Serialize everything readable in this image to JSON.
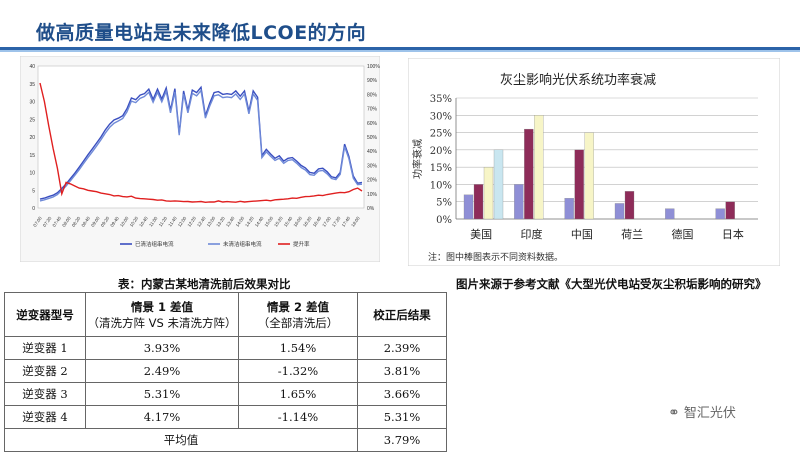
{
  "page": {
    "title": "做高质量电站是未来降低LCOE的方向",
    "table_caption": "表：内蒙古某地清洗前后效果对比",
    "source_caption": "图片来源于参考文献《大型光伏电站受灰尘积垢影响的研究》",
    "watermark": "智汇光伏"
  },
  "table": {
    "headers": {
      "col1": "逆变器型号",
      "col2_line1": "情景 1 差值",
      "col2_line2": "（清洗方阵 VS 未清洗方阵）",
      "col3_line1": "情景 2 差值",
      "col3_line2": "（全部清洗后）",
      "col4": "校正后结果"
    },
    "rows": [
      [
        "逆变器 1",
        "3.93%",
        "1.54%",
        "2.39%"
      ],
      [
        "逆变器 2",
        "2.49%",
        "-1.32%",
        "3.81%"
      ],
      [
        "逆变器 3",
        "5.31%",
        "1.65%",
        "3.66%"
      ],
      [
        "逆变器 4",
        "4.17%",
        "-1.14%",
        "5.31%"
      ]
    ],
    "average_label": "平均值",
    "average_value": "3.79%"
  },
  "chart_data": [
    {
      "type": "line",
      "title": "",
      "colors": {
        "cleaned": "#3a4fc0",
        "uncleaned": "#6f8ad8",
        "rate": "#e02020"
      },
      "left_ylim": [
        0,
        40
      ],
      "left_ticks": [
        "0",
        "5",
        "10",
        "15",
        "20",
        "25",
        "30",
        "35",
        "40"
      ],
      "right_ylim": [
        0,
        100
      ],
      "right_ticks": [
        "0%",
        "10%",
        "20%",
        "30%",
        "40%",
        "50%",
        "60%",
        "70%",
        "80%",
        "90%",
        "100%"
      ],
      "x_ticks": [
        "07:00",
        "07:20",
        "07:40",
        "08:00",
        "08:20",
        "08:40",
        "09:00",
        "09:20",
        "09:40",
        "10:00",
        "10:20",
        "10:40",
        "11:00",
        "11:20",
        "11:40",
        "12:00",
        "12:20",
        "12:40",
        "13:00",
        "13:20",
        "13:40",
        "14:00",
        "14:20",
        "14:40",
        "15:00",
        "15:20",
        "15:40",
        "16:00",
        "16:20",
        "16:40",
        "17:00",
        "17:20",
        "17:40",
        "18:00"
      ],
      "legend": [
        "已清洁组串电流",
        "未清洁组串电流",
        "提升率"
      ],
      "legend_position": "bottom",
      "series": [
        {
          "name": "已清洁组串电流",
          "axis": "left",
          "values": [
            2.5,
            2.8,
            3.2,
            3.6,
            4.3,
            5.5,
            6.8,
            8.3,
            9.8,
            11.5,
            13.2,
            15,
            16.6,
            18.3,
            20,
            22,
            23.6,
            24.8,
            25.3,
            26,
            28,
            31,
            30.5,
            31.8,
            32.2,
            33.5,
            30.6,
            33.5,
            30.7,
            33.8,
            27.5,
            33.6,
            21,
            33,
            27.5,
            33.2,
            32.5,
            34,
            26,
            29.5,
            32.5,
            32.8,
            32,
            32.2,
            32,
            33,
            31.5,
            33,
            27.2,
            33,
            31.2,
            14.8,
            16.5,
            15.2,
            14,
            14.7,
            13.2,
            14,
            14.2,
            13.2,
            12,
            11.3,
            10,
            9.8,
            11,
            11.2,
            10.2,
            8.8,
            8.5,
            10,
            18,
            14.5,
            9,
            7,
            7.2
          ]
        },
        {
          "name": "未清洁组串电流",
          "axis": "left",
          "values": [
            2,
            2.3,
            2.7,
            3.1,
            3.8,
            5,
            6.2,
            7.7,
            9.2,
            10.8,
            12.5,
            14.2,
            15.8,
            17.5,
            19.2,
            21.1,
            22.7,
            23.9,
            24.5,
            25.2,
            27.1,
            30.1,
            29.7,
            30.9,
            31.4,
            32.6,
            29.8,
            32.6,
            29.9,
            32.9,
            26.8,
            32.7,
            20.5,
            32.1,
            26.8,
            32.3,
            31.6,
            33.1,
            25.3,
            28.7,
            31.6,
            31.9,
            31.1,
            31.3,
            31.1,
            32.1,
            30.6,
            32.1,
            26.5,
            32.1,
            30.3,
            14.2,
            15.8,
            14.6,
            13.4,
            14,
            12.6,
            13.4,
            13.6,
            12.6,
            11.4,
            10.7,
            9.4,
            9.2,
            10.4,
            10.6,
            9.6,
            8.3,
            8,
            9.5,
            17.3,
            13.9,
            8.4,
            6.6,
            6.7
          ]
        },
        {
          "name": "提升率",
          "axis": "right",
          "values": [
            88,
            75,
            58,
            42,
            28,
            10,
            18,
            17,
            15.5,
            14,
            13.5,
            12.5,
            12,
            11.5,
            10.5,
            10,
            9.5,
            8.5,
            8.7,
            8,
            7.8,
            8.3,
            7,
            6.6,
            6.5,
            6.2,
            6,
            5.5,
            5.7,
            5,
            4.8,
            5,
            4.8,
            4.5,
            4.6,
            4.2,
            4.4,
            4.6,
            4,
            4.3,
            4.2,
            5,
            4.2,
            4.5,
            4.3,
            4.1,
            4.7,
            4.2,
            4.5,
            4.8,
            5,
            5.2,
            5.5,
            5.1,
            5.8,
            6,
            6.2,
            6.5,
            7,
            6.8,
            7.5,
            8,
            8.2,
            8.5,
            9,
            8.7,
            9.5,
            10,
            10.5,
            11,
            10.8,
            11.5,
            13,
            14,
            12
          ]
        }
      ]
    },
    {
      "type": "bar",
      "title": "灰尘影响光伏系统功率衰减",
      "ylabel": "功率衰减",
      "ylim": [
        0,
        35
      ],
      "y_ticks": [
        "0%",
        "5%",
        "10%",
        "15%",
        "20%",
        "25%",
        "30%",
        "35%"
      ],
      "categories": [
        "美国",
        "印度",
        "中国",
        "荷兰",
        "德国",
        "日本"
      ],
      "note": "注：图中棒图表示不同资料数据。",
      "bar_colors": [
        "#8f8fd6",
        "#8e2c59",
        "#f7f5c7",
        "#c9e6f0"
      ],
      "groups": [
        [
          7,
          10,
          15,
          20
        ],
        [
          10,
          26,
          30
        ],
        [
          6,
          20,
          25
        ],
        [
          4.5,
          8
        ],
        [
          3
        ],
        [
          3,
          5
        ]
      ]
    }
  ]
}
